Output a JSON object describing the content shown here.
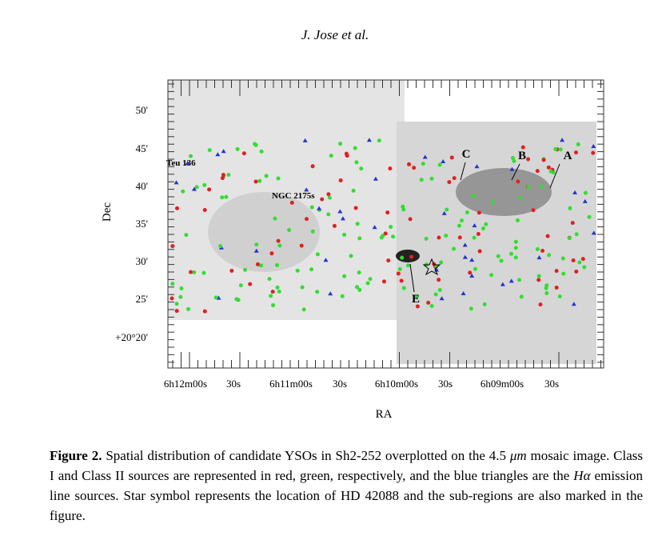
{
  "header": {
    "title": "J. Jose et al."
  },
  "figure": {
    "y_axis_label": "Dec",
    "x_axis_label": "RA",
    "y_tick_labels": [
      "50'",
      "45'",
      "40'",
      "35'",
      "30'",
      "25'",
      "+20°20'"
    ],
    "x_tick_labels": [
      "6h12m00s",
      "30s",
      "6h11m00s",
      "30s",
      "6h10m00s",
      "30s",
      "6h09m00s",
      "30s"
    ],
    "region_labels": [
      "Teu 136",
      "NGC 2175s",
      "A",
      "B",
      "C",
      "E"
    ]
  },
  "caption": {
    "label": "Figure 2.",
    "parts": [
      "Spatial distribution of candidate YSOs in Sh2-252 overplotted on the 4.5 ",
      "μm",
      " mosaic image. Class I and Class II sources are represented in red, green, respectively, and the blue triangles are the ",
      "Hα",
      " emission line sources. Star symbol represents the location of HD 42088 and the sub-regions are also marked in the figure."
    ]
  }
}
